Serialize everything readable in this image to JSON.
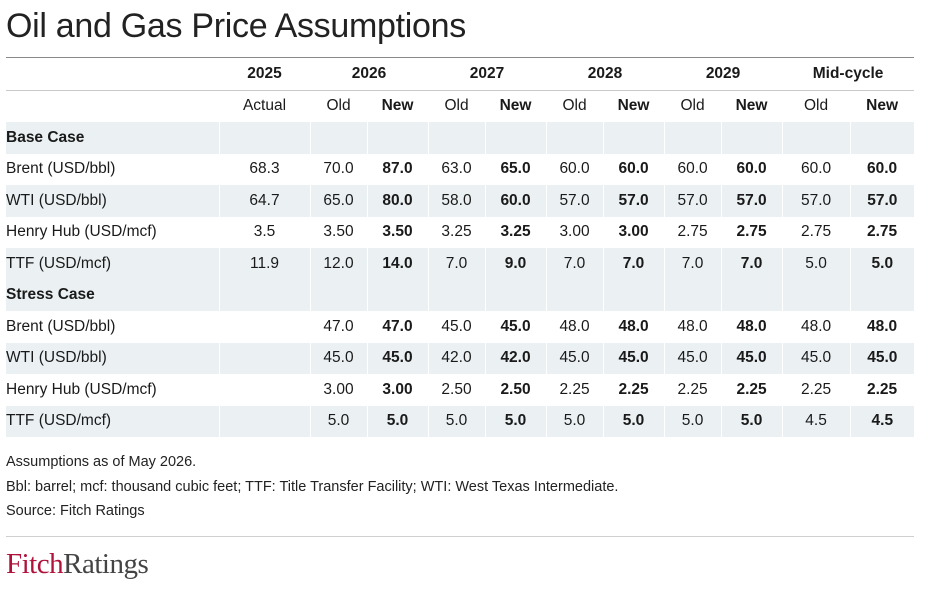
{
  "title": "Oil and Gas Price Assumptions",
  "chart_data": {
    "type": "table",
    "title": "Oil and Gas Price Assumptions",
    "year_headers": [
      "2025",
      "2026",
      "2027",
      "2028",
      "2029",
      "Mid-cycle"
    ],
    "sub_headers": [
      "Actual",
      "Old",
      "New",
      "Old",
      "New",
      "Old",
      "New",
      "Old",
      "New",
      "Old",
      "New"
    ],
    "sections": [
      {
        "name": "Base Case",
        "rows": [
          {
            "label": "Brent (USD/bbl)",
            "values": [
              "68.3",
              "70.0",
              "87.0",
              "63.0",
              "65.0",
              "60.0",
              "60.0",
              "60.0",
              "60.0",
              "60.0",
              "60.0"
            ]
          },
          {
            "label": "WTI (USD/bbl)",
            "values": [
              "64.7",
              "65.0",
              "80.0",
              "58.0",
              "60.0",
              "57.0",
              "57.0",
              "57.0",
              "57.0",
              "57.0",
              "57.0"
            ]
          },
          {
            "label": "Henry Hub (USD/mcf)",
            "values": [
              "3.5",
              "3.50",
              "3.50",
              "3.25",
              "3.25",
              "3.00",
              "3.00",
              "2.75",
              "2.75",
              "2.75",
              "2.75"
            ]
          },
          {
            "label": "TTF (USD/mcf)",
            "values": [
              "11.9",
              "12.0",
              "14.0",
              "7.0",
              "9.0",
              "7.0",
              "7.0",
              "7.0",
              "7.0",
              "5.0",
              "5.0"
            ]
          }
        ]
      },
      {
        "name": "Stress Case",
        "rows": [
          {
            "label": "Brent (USD/bbl)",
            "values": [
              "",
              "47.0",
              "47.0",
              "45.0",
              "45.0",
              "48.0",
              "48.0",
              "48.0",
              "48.0",
              "48.0",
              "48.0"
            ]
          },
          {
            "label": "WTI (USD/bbl)",
            "values": [
              "",
              "45.0",
              "45.0",
              "42.0",
              "42.0",
              "45.0",
              "45.0",
              "45.0",
              "45.0",
              "45.0",
              "45.0"
            ]
          },
          {
            "label": "Henry Hub (USD/mcf)",
            "values": [
              "",
              "3.00",
              "3.00",
              "2.50",
              "2.50",
              "2.25",
              "2.25",
              "2.25",
              "2.25",
              "2.25",
              "2.25"
            ]
          },
          {
            "label": "TTF (USD/mcf)",
            "values": [
              "",
              "5.0",
              "5.0",
              "5.0",
              "5.0",
              "5.0",
              "5.0",
              "5.0",
              "5.0",
              "4.5",
              "4.5"
            ]
          }
        ]
      }
    ],
    "shading_color": "#ebf1f3",
    "grid": false
  },
  "notes": [
    "Assumptions as of May 2026.",
    "Bbl: barrel; mcf: thousand cubic feet; TTF: Title Transfer Facility; WTI: West Texas Intermediate.",
    "Source: Fitch Ratings"
  ],
  "logo": {
    "part1": "Fitch",
    "part2": "Ratings",
    "brand_color": "#b0123b"
  }
}
